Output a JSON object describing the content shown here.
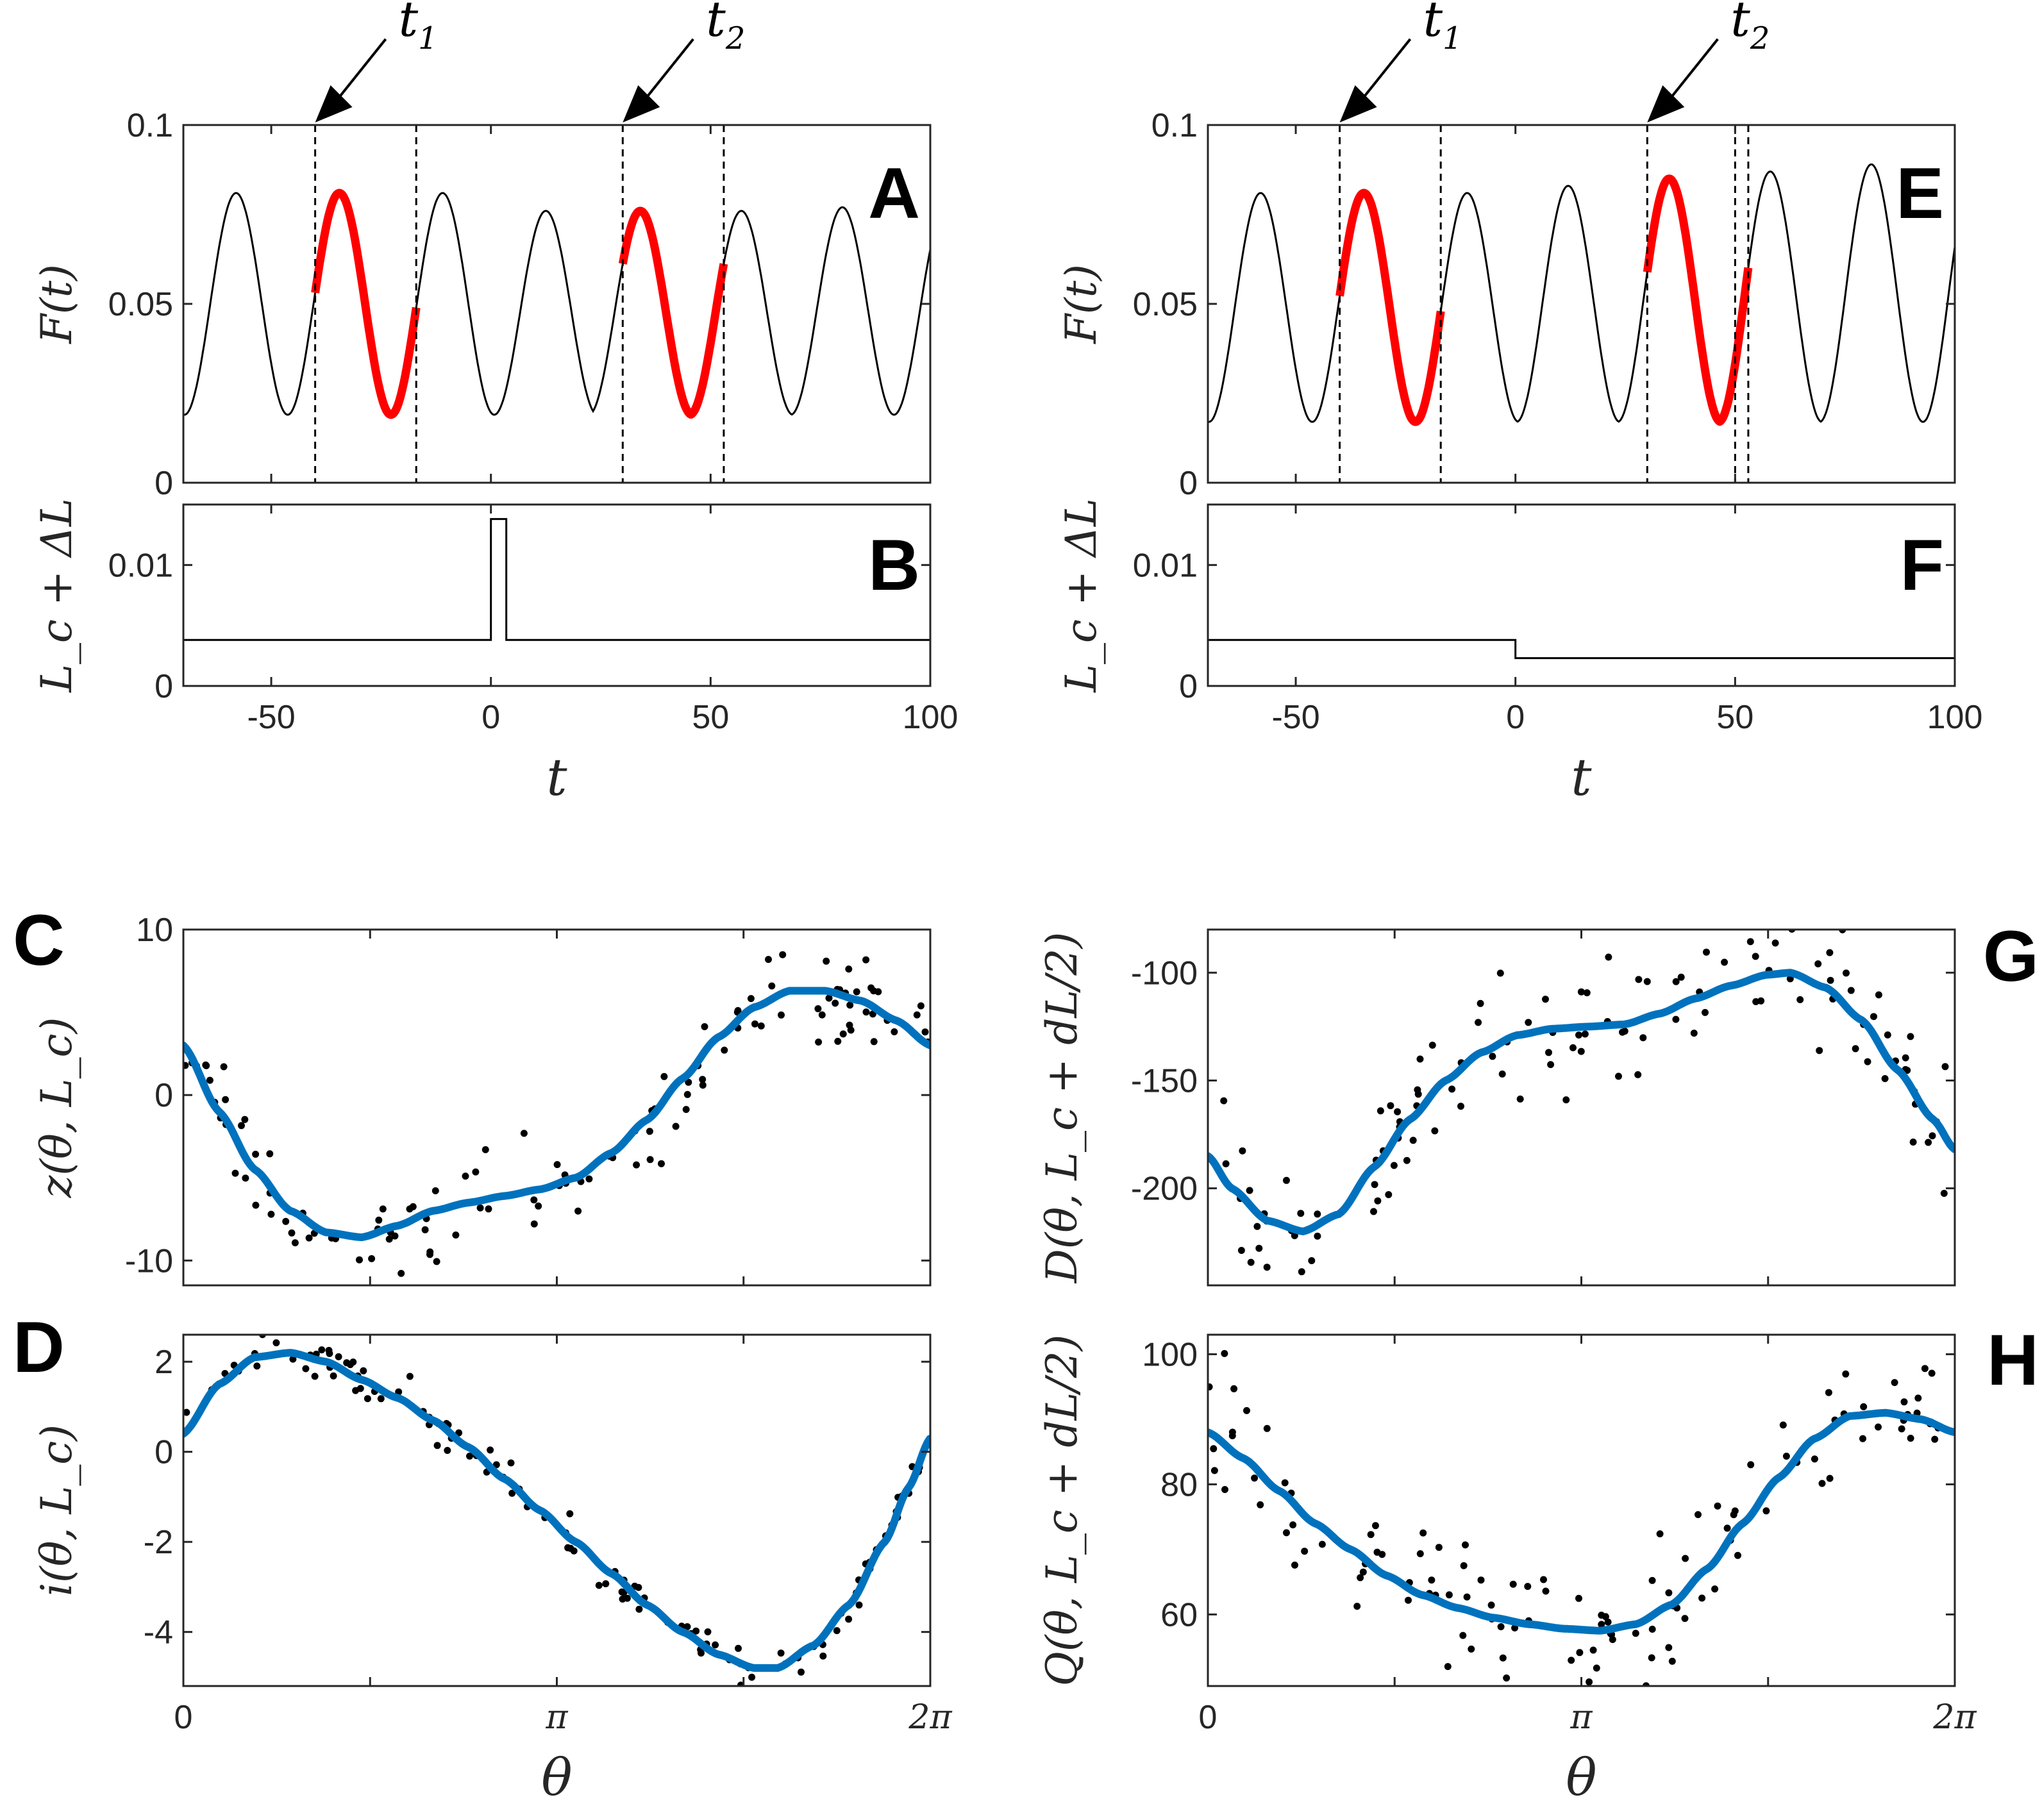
{
  "colors": {
    "red": "#ff0000",
    "blue": "#0072bd",
    "black": "#000000",
    "axis": "#262626"
  },
  "chart_data": [
    {
      "id": "A",
      "type": "line",
      "panel_label": "A",
      "ylabel": "F(t)",
      "xlabel": "",
      "xlim": [
        -70,
        100
      ],
      "ylim": [
        0,
        0.1
      ],
      "yticks": [
        0,
        0.05,
        0.1
      ],
      "ytick_labels": [
        "0",
        "0.05",
        "0.1"
      ],
      "series": [
        {
          "name": "F(t)",
          "color": "#000000",
          "period": 23.5,
          "min": 0.019,
          "peaks": [
            [
              -58,
              0.081
            ],
            [
              -34.5,
              0.081
            ],
            [
              -11,
              0.081
            ],
            [
              12.5,
              0.076
            ],
            [
              34,
              0.076
            ],
            [
              57,
              0.076
            ],
            [
              80,
              0.077
            ]
          ]
        },
        {
          "name": "highlight",
          "color": "#ff0000",
          "segments": [
            [
              -40,
              -17
            ],
            [
              30,
              53
            ]
          ]
        }
      ],
      "vlines": [
        -40,
        -17,
        30,
        53
      ],
      "arrows": [
        {
          "x": -40,
          "label": "t",
          "sub": "1"
        },
        {
          "x": 30,
          "label": "t",
          "sub": "2"
        }
      ]
    },
    {
      "id": "B",
      "type": "line",
      "panel_label": "B",
      "ylabel": "L_c + ΔL",
      "xlabel": "t",
      "xlim": [
        -70,
        100
      ],
      "ylim": [
        0,
        0.015
      ],
      "yticks": [
        0,
        0.01
      ],
      "ytick_labels": [
        "0",
        "0.01"
      ],
      "xticks": [
        -50,
        0,
        50,
        100
      ],
      "xtick_labels": [
        "-50",
        "0",
        "50",
        "100"
      ],
      "series": [
        {
          "name": "L_c + ΔL",
          "color": "#000000",
          "points": [
            [
              -70,
              0.0038
            ],
            [
              0,
              0.0038
            ],
            [
              0,
              0.0138
            ],
            [
              3.5,
              0.0138
            ],
            [
              3.5,
              0.0038
            ],
            [
              100,
              0.0038
            ]
          ]
        }
      ]
    },
    {
      "id": "C",
      "type": "scatter",
      "panel_label": "C",
      "ylabel": "z(θ, L_c)",
      "xlabel": "",
      "xlim": [
        0,
        6.2832
      ],
      "ylim": [
        -11.5,
        10
      ],
      "yticks": [
        -10,
        0,
        10
      ],
      "ytick_labels": [
        "-10",
        "0",
        "10"
      ],
      "fit": {
        "color": "#0072bd",
        "points": [
          [
            0,
            3
          ],
          [
            0.3,
            -1
          ],
          [
            0.6,
            -4.5
          ],
          [
            0.9,
            -7
          ],
          [
            1.2,
            -8.3
          ],
          [
            1.5,
            -8.6
          ],
          [
            1.8,
            -7.9
          ],
          [
            2.1,
            -7
          ],
          [
            2.4,
            -6.5
          ],
          [
            2.7,
            -6.1
          ],
          [
            3.0,
            -5.7
          ],
          [
            3.3,
            -5
          ],
          [
            3.6,
            -3.5
          ],
          [
            3.9,
            -1.5
          ],
          [
            4.2,
            1
          ],
          [
            4.5,
            3.5
          ],
          [
            4.8,
            5.3
          ],
          [
            5.1,
            6.3
          ],
          [
            5.4,
            6.3
          ],
          [
            5.7,
            5.7
          ],
          [
            6.0,
            4.5
          ],
          [
            6.283,
            3
          ]
        ]
      },
      "scatter_noise": 1.5
    },
    {
      "id": "D",
      "type": "scatter",
      "panel_label": "D",
      "ylabel": "i(θ, L_c)",
      "xlabel": "θ",
      "xlim": [
        0,
        6.2832
      ],
      "ylim": [
        -5.2,
        2.6
      ],
      "yticks": [
        -4,
        -2,
        0,
        2
      ],
      "ytick_labels": [
        "-4",
        "-2",
        "0",
        "2"
      ],
      "xticks": [
        0,
        3.1416,
        6.2832
      ],
      "xtick_labels": [
        "0",
        "π",
        "2π"
      ],
      "fit": {
        "color": "#0072bd",
        "points": [
          [
            0,
            0.4
          ],
          [
            0.3,
            1.5
          ],
          [
            0.6,
            2.1
          ],
          [
            0.9,
            2.2
          ],
          [
            1.2,
            2
          ],
          [
            1.5,
            1.6
          ],
          [
            1.8,
            1.2
          ],
          [
            2.1,
            0.7
          ],
          [
            2.4,
            0.1
          ],
          [
            2.7,
            -0.6
          ],
          [
            3.0,
            -1.3
          ],
          [
            3.3,
            -2
          ],
          [
            3.6,
            -2.7
          ],
          [
            3.9,
            -3.4
          ],
          [
            4.2,
            -4
          ],
          [
            4.5,
            -4.5
          ],
          [
            4.8,
            -4.8
          ],
          [
            5.0,
            -4.8
          ],
          [
            5.3,
            -4.3
          ],
          [
            5.6,
            -3.4
          ],
          [
            5.9,
            -2
          ],
          [
            6.1,
            -0.8
          ],
          [
            6.283,
            0.3
          ]
        ]
      },
      "scatter_noise": 0.25
    },
    {
      "id": "E",
      "type": "line",
      "panel_label": "E",
      "ylabel": "F(t)",
      "xlabel": "",
      "xlim": [
        -70,
        100
      ],
      "ylim": [
        0,
        0.1
      ],
      "yticks": [
        0,
        0.05,
        0.1
      ],
      "ytick_labels": [
        "0",
        "0.05",
        "0.1"
      ],
      "series": [
        {
          "name": "F(t)",
          "color": "#000000",
          "period": 23.5,
          "min": 0.017,
          "peaks": [
            [
              -58,
              0.081
            ],
            [
              -34.5,
              0.081
            ],
            [
              -11,
              0.081
            ],
            [
              12,
              0.083
            ],
            [
              35,
              0.085
            ],
            [
              58,
              0.087
            ],
            [
              81,
              0.089
            ]
          ]
        },
        {
          "name": "highlight",
          "color": "#ff0000",
          "segments": [
            [
              -40,
              -17
            ],
            [
              30,
              53
            ]
          ]
        }
      ],
      "vlines": [
        -40,
        -17,
        30,
        50,
        53
      ],
      "arrows": [
        {
          "x": -40,
          "label": "t",
          "sub": "1"
        },
        {
          "x": 30,
          "label": "t",
          "sub": "2"
        }
      ]
    },
    {
      "id": "F",
      "type": "line",
      "panel_label": "F",
      "ylabel": "L_c + ΔL",
      "xlabel": "t",
      "xlim": [
        -70,
        100
      ],
      "ylim": [
        0,
        0.015
      ],
      "yticks": [
        0,
        0.01
      ],
      "ytick_labels": [
        "0",
        "0.01"
      ],
      "xticks": [
        -50,
        0,
        50,
        100
      ],
      "xtick_labels": [
        "-50",
        "0",
        "50",
        "100"
      ],
      "series": [
        {
          "name": "L_c + ΔL",
          "color": "#000000",
          "points": [
            [
              -70,
              0.0038
            ],
            [
              0,
              0.0038
            ],
            [
              0,
              0.0023
            ],
            [
              100,
              0.0023
            ]
          ]
        }
      ]
    },
    {
      "id": "G",
      "type": "scatter",
      "panel_label": "G",
      "ylabel": "D(θ, L_c + dL/2)",
      "xlabel": "",
      "xlim": [
        0,
        6.2832
      ],
      "ylim": [
        -245,
        -80
      ],
      "yticks": [
        -200,
        -150,
        -100
      ],
      "ytick_labels": [
        "-200",
        "-150",
        "-100"
      ],
      "fit": {
        "color": "#0072bd",
        "points": [
          [
            0,
            -185
          ],
          [
            0.2,
            -200
          ],
          [
            0.5,
            -215
          ],
          [
            0.8,
            -220
          ],
          [
            1.1,
            -212
          ],
          [
            1.4,
            -190
          ],
          [
            1.7,
            -168
          ],
          [
            2.0,
            -150
          ],
          [
            2.3,
            -137
          ],
          [
            2.6,
            -129
          ],
          [
            2.9,
            -126
          ],
          [
            3.2,
            -125
          ],
          [
            3.5,
            -124
          ],
          [
            3.8,
            -119
          ],
          [
            4.1,
            -112
          ],
          [
            4.4,
            -106
          ],
          [
            4.7,
            -101
          ],
          [
            4.9,
            -100
          ],
          [
            5.2,
            -107
          ],
          [
            5.5,
            -122
          ],
          [
            5.8,
            -145
          ],
          [
            6.1,
            -168
          ],
          [
            6.283,
            -182
          ]
        ]
      },
      "scatter_noise": 14
    },
    {
      "id": "H",
      "type": "scatter",
      "panel_label": "H",
      "ylabel": "Q(θ, L_c + dL/2)",
      "xlabel": "θ",
      "xlim": [
        0,
        6.2832
      ],
      "ylim": [
        49,
        103
      ],
      "yticks": [
        60,
        80,
        100
      ],
      "ytick_labels": [
        "60",
        "80",
        "100"
      ],
      "xticks": [
        0,
        3.1416,
        6.2832
      ],
      "xtick_labels": [
        "0",
        "π",
        "2π"
      ],
      "fit": {
        "color": "#0072bd",
        "points": [
          [
            0,
            88
          ],
          [
            0.3,
            84
          ],
          [
            0.6,
            79
          ],
          [
            0.9,
            74
          ],
          [
            1.2,
            70
          ],
          [
            1.5,
            66
          ],
          [
            1.8,
            63
          ],
          [
            2.1,
            61
          ],
          [
            2.4,
            59.5
          ],
          [
            2.7,
            58.5
          ],
          [
            3.0,
            57.8
          ],
          [
            3.3,
            57.5
          ],
          [
            3.6,
            58.5
          ],
          [
            3.9,
            61.5
          ],
          [
            4.2,
            67
          ],
          [
            4.5,
            74
          ],
          [
            4.8,
            81
          ],
          [
            5.1,
            87
          ],
          [
            5.4,
            90.5
          ],
          [
            5.7,
            91
          ],
          [
            6.0,
            90
          ],
          [
            6.283,
            88
          ]
        ]
      },
      "scatter_noise": 5
    }
  ],
  "text": {
    "A": {
      "label": "A",
      "ylabel_main": "F(t)"
    },
    "B": {
      "label": "B"
    },
    "C": {
      "label": "C"
    },
    "D": {
      "label": "D"
    },
    "E": {
      "label": "E"
    },
    "F": {
      "label": "F"
    },
    "G": {
      "label": "G"
    },
    "H": {
      "label": "H"
    }
  }
}
